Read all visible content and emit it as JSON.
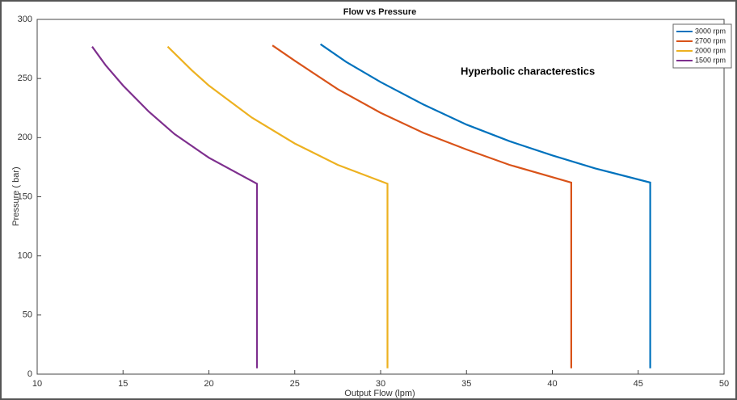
{
  "chart_data": {
    "type": "line",
    "title": "Flow vs Pressure",
    "x_label": "Output Flow (lpm)",
    "y_label": "Pressure ( bar)",
    "annotation": "Hyperbolic characterestics",
    "xlim": [
      10,
      50
    ],
    "xticks": [
      10,
      15,
      20,
      25,
      30,
      35,
      40,
      45,
      50
    ],
    "ylim": [
      0,
      300
    ],
    "yticks": [
      0,
      50,
      100,
      150,
      200,
      250,
      300
    ],
    "grid": false,
    "legend": "upper right",
    "series": [
      {
        "name": "3000 rpm",
        "color": "#0072BD",
        "x": [
          26.5,
          28,
          30,
          32.5,
          35,
          37.5,
          40,
          42.5,
          45.7,
          45.7
        ],
        "values": [
          279,
          264,
          247,
          228,
          211,
          197,
          185,
          174,
          162,
          5
        ]
      },
      {
        "name": "2700 rpm",
        "color": "#D95319",
        "x": [
          23.7,
          25,
          27.5,
          30,
          32.5,
          35,
          37.5,
          41.1,
          41.1
        ],
        "values": [
          278,
          265,
          241,
          221,
          204,
          190,
          177,
          162,
          5
        ]
      },
      {
        "name": "2000 rpm",
        "color": "#EDB120",
        "x": [
          17.6,
          19,
          20,
          22.5,
          25,
          27.5,
          30.4,
          30.4
        ],
        "values": [
          277,
          257,
          244,
          217,
          195,
          177,
          161,
          5
        ]
      },
      {
        "name": "1500 rpm",
        "color": "#7E2F8E",
        "x": [
          13.2,
          14,
          15,
          16.5,
          18,
          20,
          22.8,
          22.8
        ],
        "values": [
          277,
          261,
          244,
          222,
          203,
          183,
          161,
          5
        ]
      }
    ]
  }
}
